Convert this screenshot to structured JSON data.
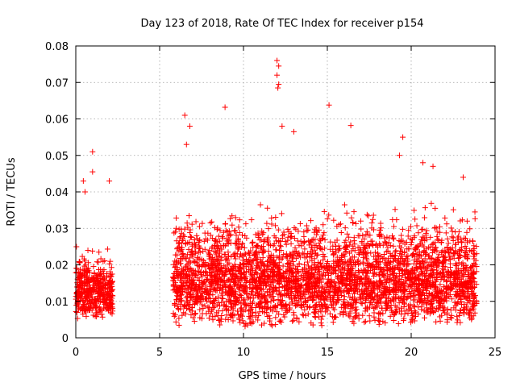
{
  "chart_data": {
    "type": "scatter",
    "title": "Day 123 of 2018, Rate Of TEC Index for receiver p154",
    "xlabel": "GPS time / hours",
    "ylabel": "ROTI / TECUs",
    "xlim": [
      0,
      25
    ],
    "ylim": [
      0,
      0.08
    ],
    "xticks": [
      "0",
      "5",
      "10",
      "15",
      "20",
      "25"
    ],
    "yticks": [
      "0",
      "0.01",
      "0.02",
      "0.03",
      "0.04",
      "0.05",
      "0.06",
      "0.07",
      "0.08"
    ],
    "grid": true,
    "marker": "+",
    "color": "#ff0000",
    "outliers": [
      {
        "x": 1.0,
        "y": 0.051
      },
      {
        "x": 1.0,
        "y": 0.0455
      },
      {
        "x": 0.45,
        "y": 0.043
      },
      {
        "x": 0.55,
        "y": 0.04
      },
      {
        "x": 2.0,
        "y": 0.043
      },
      {
        "x": 6.5,
        "y": 0.061
      },
      {
        "x": 6.8,
        "y": 0.058
      },
      {
        "x": 6.6,
        "y": 0.053
      },
      {
        "x": 8.9,
        "y": 0.0632
      },
      {
        "x": 12.0,
        "y": 0.076
      },
      {
        "x": 12.1,
        "y": 0.0745
      },
      {
        "x": 12.0,
        "y": 0.072
      },
      {
        "x": 12.1,
        "y": 0.0695
      },
      {
        "x": 12.05,
        "y": 0.0685
      },
      {
        "x": 12.3,
        "y": 0.058
      },
      {
        "x": 13.0,
        "y": 0.0565
      },
      {
        "x": 15.1,
        "y": 0.0638
      },
      {
        "x": 16.4,
        "y": 0.0582
      },
      {
        "x": 19.5,
        "y": 0.055
      },
      {
        "x": 19.3,
        "y": 0.05
      },
      {
        "x": 20.7,
        "y": 0.048
      },
      {
        "x": 21.3,
        "y": 0.047
      },
      {
        "x": 23.1,
        "y": 0.044
      },
      {
        "x": 23.8,
        "y": 0.0345
      }
    ],
    "segments": [
      {
        "x_start": 0.0,
        "x_end": 2.2,
        "y_min": 0.005,
        "y_max": 0.026,
        "count": 450
      },
      {
        "x_start": 5.8,
        "x_end": 23.9,
        "y_min": 0.003,
        "y_max": 0.038,
        "count": 3600
      }
    ]
  }
}
